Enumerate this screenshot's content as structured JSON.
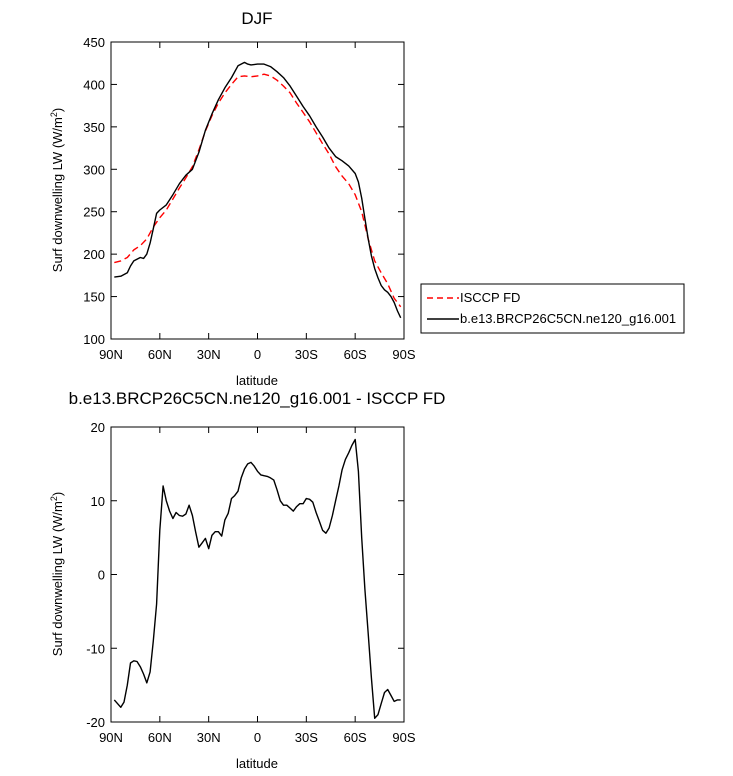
{
  "chart_data": [
    {
      "type": "line",
      "title": "DJF",
      "xlabel": "latitude",
      "ylabel": "Surf downwelling LW (W/m²)",
      "ylabel_base": "Surf downwelling LW (W/m",
      "ylabel_sup": "2",
      "ylabel_close": ")",
      "xlim": [
        90,
        -90
      ],
      "ylim": [
        100,
        450
      ],
      "xticks": [
        {
          "value": 90,
          "label": "90N"
        },
        {
          "value": 60,
          "label": "60N"
        },
        {
          "value": 30,
          "label": "30N"
        },
        {
          "value": 0,
          "label": "0"
        },
        {
          "value": -30,
          "label": "30S"
        },
        {
          "value": -60,
          "label": "60S"
        },
        {
          "value": -90,
          "label": "90S"
        }
      ],
      "yticks": [
        100,
        150,
        200,
        250,
        300,
        350,
        400,
        450
      ],
      "legend_position": "right",
      "series": [
        {
          "name": "ISCCP FD",
          "color": "#ff0000",
          "dash": "dashed",
          "x": [
            88,
            84,
            80,
            76,
            72,
            68,
            64,
            60,
            56,
            52,
            48,
            44,
            40,
            36,
            32,
            28,
            24,
            20,
            16,
            12,
            8,
            4,
            0,
            -4,
            -8,
            -12,
            -16,
            -20,
            -24,
            -28,
            -32,
            -36,
            -40,
            -44,
            -48,
            -52,
            -56,
            -60,
            -64,
            -68,
            -72,
            -76,
            -80,
            -84,
            -88
          ],
          "y": [
            190,
            192,
            196,
            205,
            210,
            218,
            232,
            243,
            252,
            265,
            278,
            290,
            303,
            323,
            345,
            363,
            378,
            390,
            400,
            409,
            410,
            409,
            410,
            412,
            410,
            405,
            398,
            390,
            378,
            367,
            356,
            343,
            330,
            318,
            303,
            292,
            283,
            270,
            250,
            218,
            192,
            178,
            165,
            148,
            138
          ]
        },
        {
          "name": "b.e13.BRCP26C5CN.ne120_g16.001",
          "color": "#000000",
          "dash": "solid",
          "x": [
            88,
            84,
            80,
            78,
            76,
            72,
            70,
            68,
            66,
            64,
            62,
            60,
            56,
            52,
            48,
            44,
            40,
            36,
            32,
            28,
            24,
            20,
            16,
            12,
            8,
            6,
            4,
            0,
            -4,
            -8,
            -12,
            -16,
            -20,
            -24,
            -28,
            -32,
            -36,
            -40,
            -44,
            -48,
            -52,
            -56,
            -60,
            -62,
            -64,
            -66,
            -68,
            -70,
            -72,
            -74,
            -76,
            -78,
            -80,
            -82,
            -84,
            -86,
            -88
          ],
          "y": [
            173,
            174,
            178,
            186,
            192,
            196,
            195,
            200,
            213,
            230,
            248,
            252,
            258,
            270,
            283,
            293,
            300,
            320,
            346,
            365,
            382,
            396,
            408,
            422,
            426,
            424,
            423,
            424,
            424,
            421,
            415,
            408,
            398,
            386,
            374,
            363,
            350,
            338,
            325,
            315,
            310,
            304,
            295,
            285,
            266,
            242,
            218,
            198,
            183,
            172,
            163,
            158,
            155,
            150,
            143,
            133,
            125
          ]
        }
      ]
    },
    {
      "type": "line",
      "title": "b.e13.BRCP26C5CN.ne120_g16.001 - ISCCP FD",
      "xlabel": "latitude",
      "ylabel": "Surf downwelling LW (W/m²)",
      "ylabel_base": "Surf downwelling LW (W/m",
      "ylabel_sup": "2",
      "ylabel_close": ")",
      "xlim": [
        90,
        -90
      ],
      "ylim": [
        -20,
        20
      ],
      "xticks": [
        {
          "value": 90,
          "label": "90N"
        },
        {
          "value": 60,
          "label": "60N"
        },
        {
          "value": 30,
          "label": "30N"
        },
        {
          "value": 0,
          "label": "0"
        },
        {
          "value": -30,
          "label": "30S"
        },
        {
          "value": -60,
          "label": "60S"
        },
        {
          "value": -90,
          "label": "90S"
        }
      ],
      "yticks": [
        -20,
        -10,
        0,
        10,
        20
      ],
      "series": [
        {
          "color": "#000000",
          "dash": "solid",
          "x": [
            88,
            84,
            82,
            80,
            78,
            76,
            74,
            72,
            70,
            68,
            66,
            64,
            62,
            60,
            58,
            56,
            54,
            52,
            50,
            48,
            46,
            44,
            42,
            40,
            38,
            36,
            34,
            32,
            30,
            28,
            26,
            24,
            22,
            20,
            18,
            16,
            14,
            12,
            10,
            8,
            6,
            4,
            2,
            0,
            -2,
            -4,
            -6,
            -8,
            -10,
            -12,
            -14,
            -16,
            -18,
            -20,
            -22,
            -24,
            -26,
            -28,
            -30,
            -32,
            -34,
            -36,
            -38,
            -40,
            -42,
            -44,
            -46,
            -48,
            -50,
            -52,
            -54,
            -56,
            -58,
            -60,
            -62,
            -64,
            -66,
            -68,
            -70,
            -72,
            -74,
            -76,
            -78,
            -80,
            -82,
            -84,
            -86,
            -88
          ],
          "y": [
            -17,
            -18,
            -17.3,
            -15,
            -12,
            -11.7,
            -11.8,
            -12.5,
            -13.5,
            -14.7,
            -13.2,
            -9,
            -4,
            6,
            12,
            10,
            8.6,
            7.6,
            8.4,
            8,
            7.9,
            8.2,
            9.4,
            8,
            5.8,
            3.7,
            4.3,
            4.9,
            3.5,
            5.3,
            5.8,
            5.8,
            5.2,
            7.4,
            8.3,
            10.3,
            10.7,
            11.3,
            13.1,
            14.3,
            15,
            15.2,
            14.7,
            14,
            13.5,
            13.4,
            13.3,
            13.1,
            12.8,
            11.5,
            10,
            9.4,
            9.4,
            9.0,
            8.6,
            9.2,
            9.6,
            9.6,
            10.3,
            10.2,
            9.8,
            8.4,
            7.2,
            6.0,
            5.6,
            6.3,
            8.0,
            10.0,
            12.0,
            14.2,
            15.6,
            16.5,
            17.5,
            18.3,
            14.0,
            5.0,
            -2.0,
            -8.0,
            -14.0,
            -19.5,
            -19.0,
            -17.5,
            -16.0,
            -15.6,
            -16.4,
            -17.2,
            -17.0,
            -17.0
          ]
        }
      ]
    }
  ]
}
